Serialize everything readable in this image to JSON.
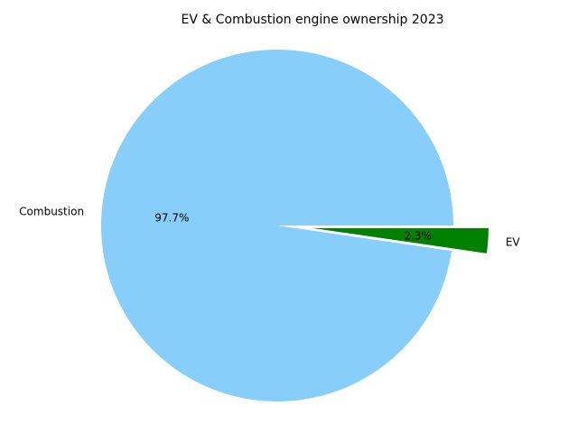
{
  "chart_data": {
    "type": "pie",
    "title": "EV & Combustion engine ownership 2023",
    "categories": [
      "Combustion",
      "EV"
    ],
    "values": [
      97.7,
      2.3
    ],
    "percent_labels": [
      "97.7%",
      "2.3%"
    ],
    "colors": [
      "#87cefa",
      "#008000"
    ],
    "explode": [
      0,
      0.2
    ],
    "start_angle_deg": 0,
    "direction": "counterclockwise",
    "legend": "none",
    "grid": false
  }
}
